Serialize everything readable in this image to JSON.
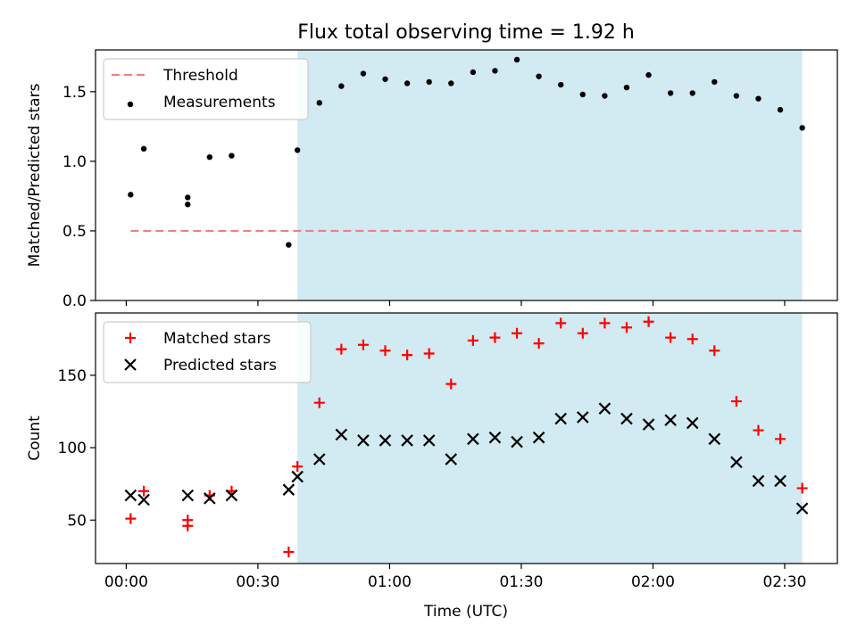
{
  "title": "Flux total observing time = 1.92 h",
  "xlabel": "Time (UTC)",
  "x_ticks": [
    "00:00",
    "00:30",
    "01:00",
    "01:30",
    "02:00",
    "02:30"
  ],
  "x_tick_minutes": [
    0,
    30,
    60,
    90,
    120,
    150
  ],
  "x_range_minutes": [
    -7,
    162
  ],
  "shaded_interval_minutes": [
    39,
    154
  ],
  "shade_color": "#add8e6",
  "chart_data": [
    {
      "type": "scatter",
      "ylabel": "Matched/Predicted stars",
      "ylim": [
        0,
        1.8
      ],
      "y_ticks": [
        "0.0",
        "0.5",
        "1.0",
        "1.5"
      ],
      "y_tick_values": [
        0,
        0.5,
        1.0,
        1.5
      ],
      "legend_position": "top-left",
      "threshold": {
        "name": "Threshold",
        "value": 0.5,
        "x_from": 1,
        "x_to": 154,
        "color": "#f08080"
      },
      "series": [
        {
          "name": "Measurements",
          "color": "#000000",
          "marker": "dot",
          "x": [
            1,
            4,
            14,
            14,
            19,
            24,
            37,
            39,
            44,
            49,
            54,
            59,
            64,
            69,
            74,
            79,
            84,
            89,
            94,
            99,
            104,
            109,
            114,
            119,
            124,
            129,
            134,
            139,
            144,
            149,
            154
          ],
          "y": [
            0.76,
            1.09,
            0.69,
            0.74,
            1.03,
            1.04,
            0.4,
            1.08,
            1.42,
            1.54,
            1.63,
            1.59,
            1.56,
            1.57,
            1.56,
            1.64,
            1.65,
            1.73,
            1.61,
            1.55,
            1.48,
            1.47,
            1.53,
            1.62,
            1.49,
            1.49,
            1.57,
            1.47,
            1.45,
            1.37,
            1.24
          ]
        }
      ]
    },
    {
      "type": "scatter",
      "ylabel": "Count",
      "ylim": [
        20,
        193
      ],
      "y_ticks": [
        "50",
        "100",
        "150"
      ],
      "y_tick_values": [
        50,
        100,
        150
      ],
      "legend_position": "top-left",
      "series": [
        {
          "name": "Matched stars",
          "color": "#ff0000",
          "marker": "plus",
          "x": [
            1,
            4,
            14,
            14,
            19,
            24,
            37,
            39,
            44,
            49,
            54,
            59,
            64,
            69,
            74,
            79,
            84,
            89,
            94,
            99,
            104,
            109,
            114,
            119,
            124,
            129,
            134,
            139,
            144,
            149,
            154
          ],
          "y": [
            51,
            70,
            46,
            50,
            67,
            70,
            28,
            87,
            131,
            168,
            171,
            167,
            164,
            165,
            144,
            174,
            176,
            179,
            172,
            186,
            179,
            186,
            183,
            187,
            176,
            175,
            167,
            132,
            112,
            106,
            72
          ]
        },
        {
          "name": "Predicted stars",
          "color": "#000000",
          "marker": "x",
          "x": [
            1,
            4,
            14,
            19,
            24,
            37,
            39,
            44,
            49,
            54,
            59,
            64,
            69,
            74,
            79,
            84,
            89,
            94,
            99,
            104,
            109,
            114,
            119,
            124,
            129,
            134,
            139,
            144,
            149,
            154
          ],
          "y": [
            67,
            64,
            67,
            65,
            67,
            71,
            80,
            92,
            109,
            105,
            105,
            105,
            105,
            92,
            106,
            107,
            104,
            107,
            120,
            121,
            127,
            120,
            116,
            119,
            117,
            106,
            90,
            77,
            77,
            58
          ]
        }
      ]
    }
  ]
}
